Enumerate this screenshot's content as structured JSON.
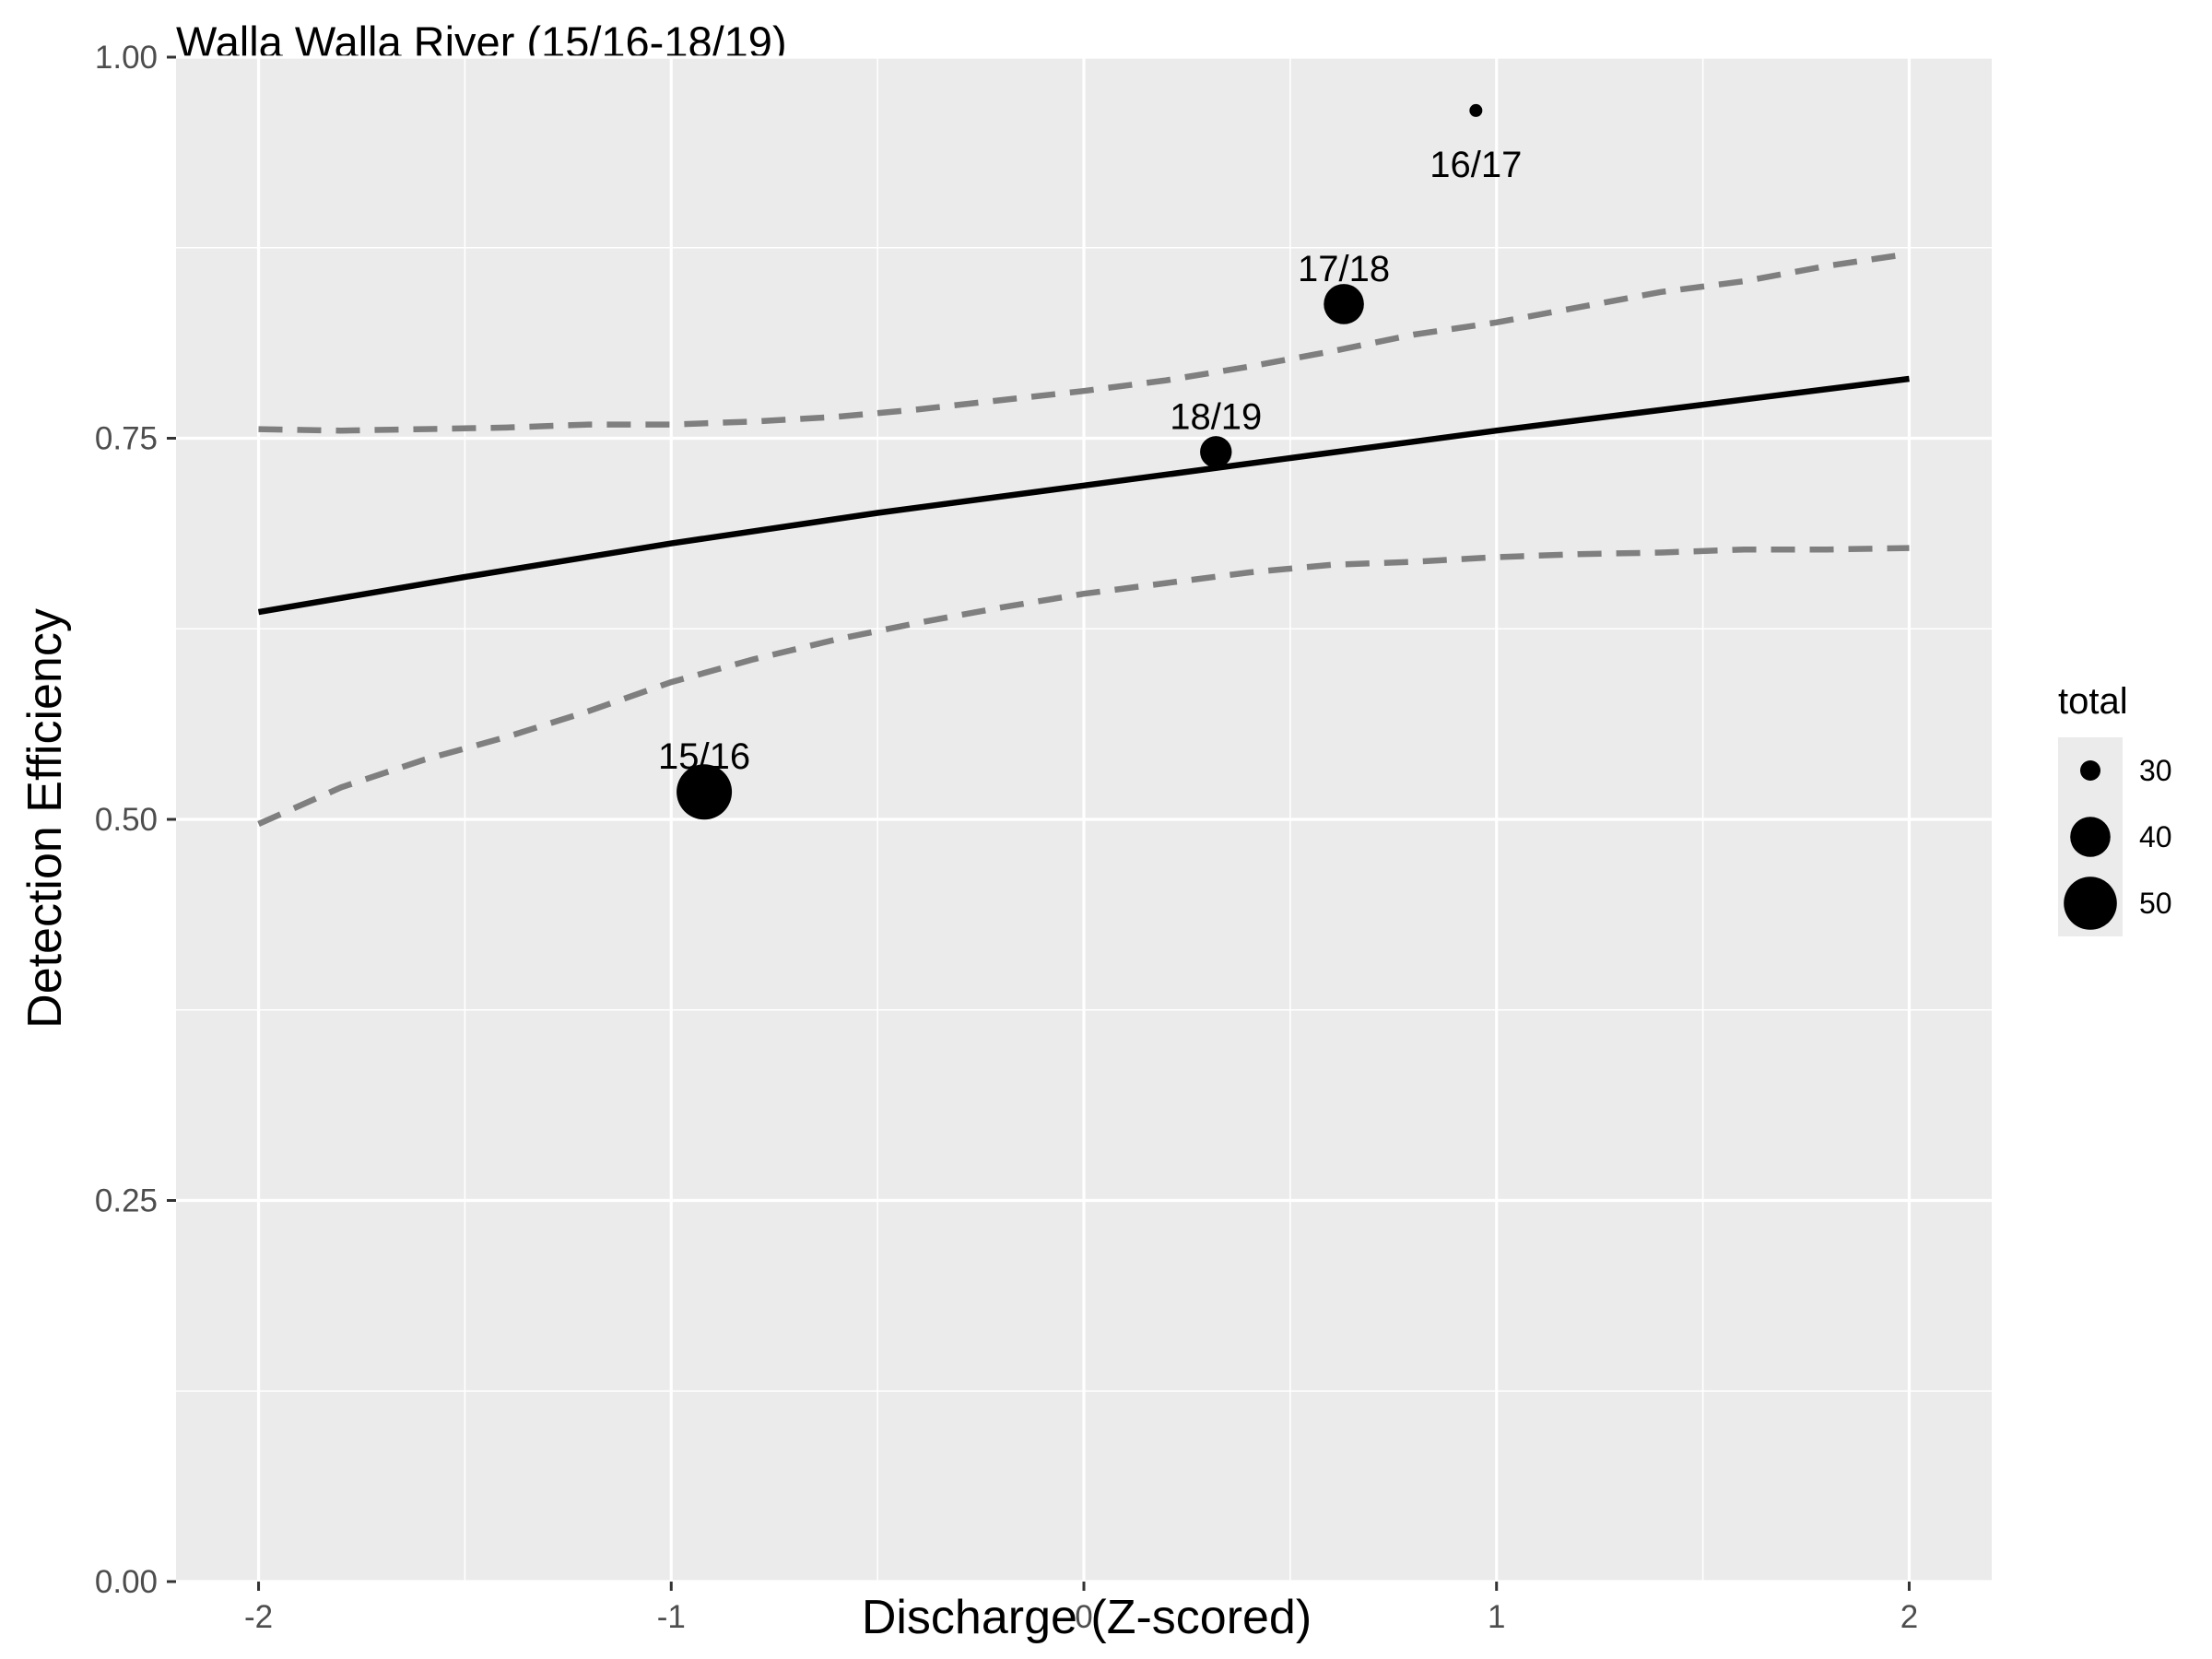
{
  "chart_data": {
    "type": "scatter",
    "title": "Walla Walla River (15/16-18/19)",
    "xlabel": "Discharge (Z-scored)",
    "ylabel": "Detection Efficiency",
    "xlim": [
      -2.2,
      2.2
    ],
    "ylim": [
      0,
      1
    ],
    "x_ticks": [
      -2,
      -1,
      0,
      1,
      2
    ],
    "x_tick_labels": [
      "-2",
      "-1",
      "0",
      "1",
      "2"
    ],
    "y_ticks": [
      0,
      0.25,
      0.5,
      0.75,
      1
    ],
    "y_tick_labels": [
      "0.00",
      "0.25",
      "0.50",
      "0.75",
      "1.00"
    ],
    "grid": true,
    "background": "#ebebeb",
    "points": [
      {
        "label": "15/16",
        "x": -0.92,
        "y": 0.518,
        "total": 52
      },
      {
        "label": "16/17",
        "x": 0.95,
        "y": 0.965,
        "total": 28
      },
      {
        "label": "17/18",
        "x": 0.63,
        "y": 0.838,
        "total": 40
      },
      {
        "label": "18/19",
        "x": 0.32,
        "y": 0.741,
        "total": 35
      }
    ],
    "fit_line": {
      "x": [
        -2,
        -1.5,
        -1,
        -0.5,
        0,
        0.5,
        1,
        1.5,
        2
      ],
      "y": [
        0.636,
        0.659,
        0.681,
        0.701,
        0.719,
        0.737,
        0.755,
        0.772,
        0.789
      ],
      "color": "#000000"
    },
    "upper_bound": {
      "x": [
        -2,
        -1.8,
        -1.6,
        -1.4,
        -1.2,
        -1.0,
        -0.8,
        -0.6,
        -0.4,
        -0.2,
        0,
        0.2,
        0.4,
        0.6,
        0.8,
        1.0,
        1.2,
        1.4,
        1.6,
        1.8,
        2.0
      ],
      "y": [
        0.756,
        0.755,
        0.756,
        0.757,
        0.759,
        0.759,
        0.761,
        0.764,
        0.769,
        0.775,
        0.781,
        0.788,
        0.797,
        0.807,
        0.818,
        0.826,
        0.836,
        0.846,
        0.853,
        0.863,
        0.871
      ],
      "color": "#7f7f7f",
      "style": "dashed"
    },
    "lower_bound": {
      "x": [
        -2,
        -1.8,
        -1.6,
        -1.4,
        -1.2,
        -1.0,
        -0.8,
        -0.6,
        -0.4,
        -0.2,
        0,
        0.2,
        0.4,
        0.6,
        0.8,
        1.0,
        1.2,
        1.4,
        1.6,
        1.8,
        2.0
      ],
      "y": [
        0.497,
        0.521,
        0.539,
        0.554,
        0.571,
        0.59,
        0.605,
        0.618,
        0.629,
        0.639,
        0.648,
        0.655,
        0.662,
        0.667,
        0.669,
        0.672,
        0.674,
        0.675,
        0.677,
        0.677,
        0.678
      ],
      "color": "#7f7f7f",
      "style": "dashed"
    },
    "legend": {
      "title": "total",
      "position": "right",
      "entries": [
        {
          "label": "30",
          "value": 30
        },
        {
          "label": "40",
          "value": 40
        },
        {
          "label": "50",
          "value": 50
        }
      ]
    },
    "size_scale": {
      "min_total": 28,
      "max_total": 52
    }
  }
}
